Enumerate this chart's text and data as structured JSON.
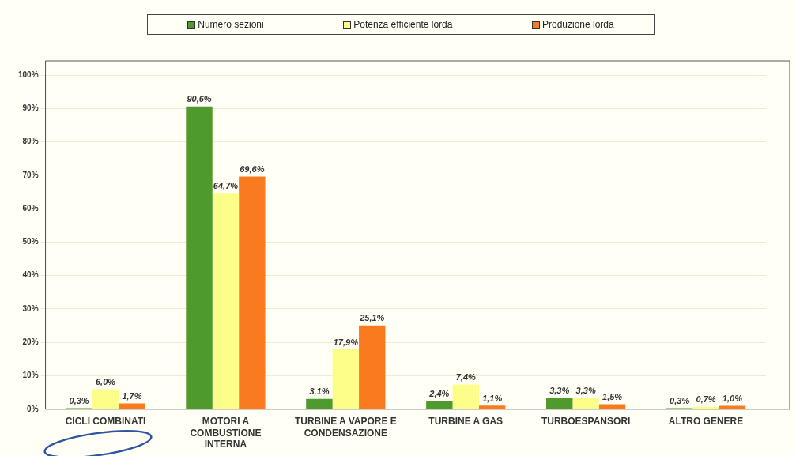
{
  "chart_data": {
    "type": "bar",
    "categories": [
      "CICLI COMBINATI",
      "MOTORI A COMBUSTIONE INTERNA",
      "TURBINE A VAPORE E CONDENSAZIONE",
      "TURBINE A GAS",
      "TURBOESPANSORI",
      "ALTRO GENERE"
    ],
    "series": [
      {
        "name": "Numero sezioni",
        "color": "#4f9a2c",
        "values": [
          0.3,
          90.6,
          3.1,
          2.4,
          3.3,
          0.3
        ],
        "value_labels": [
          "0,3%",
          "90,6%",
          "3,1%",
          "2,4%",
          "3,3%",
          "0,3%"
        ]
      },
      {
        "name": "Potenza efficiente lorda",
        "color": "#fdfd8a",
        "values": [
          6.0,
          64.7,
          17.9,
          7.4,
          3.3,
          0.7
        ],
        "value_labels": [
          "6,0%",
          "64,7%",
          "17,9%",
          "7,4%",
          "3,3%",
          "0,7%"
        ]
      },
      {
        "name": "Produzione lorda",
        "color": "#fa7a1e",
        "values": [
          1.7,
          69.6,
          25.1,
          1.1,
          1.5,
          1.0
        ],
        "value_labels": [
          "1,7%",
          "69,6%",
          "25,1%",
          "1,1%",
          "1,5%",
          "1,0%"
        ]
      }
    ],
    "ylim": [
      0,
      100
    ],
    "yticks": [
      {
        "value": 0,
        "label": "0%"
      },
      {
        "value": 10,
        "label": "10%"
      },
      {
        "value": 20,
        "label": "20%"
      },
      {
        "value": 30,
        "label": "30%"
      },
      {
        "value": 40,
        "label": "40%"
      },
      {
        "value": 50,
        "label": "50%"
      },
      {
        "value": 60,
        "label": "60%"
      },
      {
        "value": 70,
        "label": "70%"
      },
      {
        "value": 80,
        "label": "80%"
      },
      {
        "value": 90,
        "label": "90%"
      },
      {
        "value": 100,
        "label": "100%"
      }
    ],
    "grid": "y",
    "legend": "top"
  }
}
